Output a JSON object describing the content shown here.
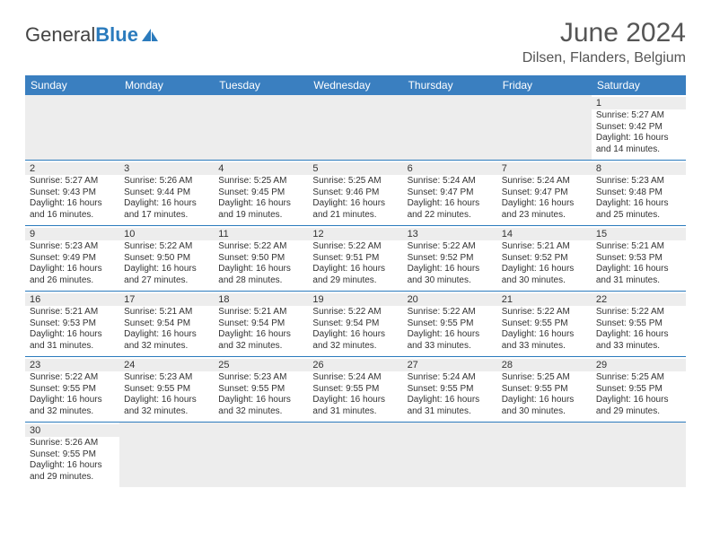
{
  "brand": {
    "part1": "General",
    "part2": "Blue"
  },
  "title": "June 2024",
  "location": "Dilsen, Flanders, Belgium",
  "colors": {
    "header_bg": "#3a7fc0",
    "header_text": "#ffffff",
    "accent": "#2b7bbd",
    "shade": "#ededed",
    "text": "#333333"
  },
  "weekdays": [
    "Sunday",
    "Monday",
    "Tuesday",
    "Wednesday",
    "Thursday",
    "Friday",
    "Saturday"
  ],
  "days": {
    "1": {
      "sunrise": "5:27 AM",
      "sunset": "9:42 PM",
      "daylight": "16 hours and 14 minutes."
    },
    "2": {
      "sunrise": "5:27 AM",
      "sunset": "9:43 PM",
      "daylight": "16 hours and 16 minutes."
    },
    "3": {
      "sunrise": "5:26 AM",
      "sunset": "9:44 PM",
      "daylight": "16 hours and 17 minutes."
    },
    "4": {
      "sunrise": "5:25 AM",
      "sunset": "9:45 PM",
      "daylight": "16 hours and 19 minutes."
    },
    "5": {
      "sunrise": "5:25 AM",
      "sunset": "9:46 PM",
      "daylight": "16 hours and 21 minutes."
    },
    "6": {
      "sunrise": "5:24 AM",
      "sunset": "9:47 PM",
      "daylight": "16 hours and 22 minutes."
    },
    "7": {
      "sunrise": "5:24 AM",
      "sunset": "9:47 PM",
      "daylight": "16 hours and 23 minutes."
    },
    "8": {
      "sunrise": "5:23 AM",
      "sunset": "9:48 PM",
      "daylight": "16 hours and 25 minutes."
    },
    "9": {
      "sunrise": "5:23 AM",
      "sunset": "9:49 PM",
      "daylight": "16 hours and 26 minutes."
    },
    "10": {
      "sunrise": "5:22 AM",
      "sunset": "9:50 PM",
      "daylight": "16 hours and 27 minutes."
    },
    "11": {
      "sunrise": "5:22 AM",
      "sunset": "9:50 PM",
      "daylight": "16 hours and 28 minutes."
    },
    "12": {
      "sunrise": "5:22 AM",
      "sunset": "9:51 PM",
      "daylight": "16 hours and 29 minutes."
    },
    "13": {
      "sunrise": "5:22 AM",
      "sunset": "9:52 PM",
      "daylight": "16 hours and 30 minutes."
    },
    "14": {
      "sunrise": "5:21 AM",
      "sunset": "9:52 PM",
      "daylight": "16 hours and 30 minutes."
    },
    "15": {
      "sunrise": "5:21 AM",
      "sunset": "9:53 PM",
      "daylight": "16 hours and 31 minutes."
    },
    "16": {
      "sunrise": "5:21 AM",
      "sunset": "9:53 PM",
      "daylight": "16 hours and 31 minutes."
    },
    "17": {
      "sunrise": "5:21 AM",
      "sunset": "9:54 PM",
      "daylight": "16 hours and 32 minutes."
    },
    "18": {
      "sunrise": "5:21 AM",
      "sunset": "9:54 PM",
      "daylight": "16 hours and 32 minutes."
    },
    "19": {
      "sunrise": "5:22 AM",
      "sunset": "9:54 PM",
      "daylight": "16 hours and 32 minutes."
    },
    "20": {
      "sunrise": "5:22 AM",
      "sunset": "9:55 PM",
      "daylight": "16 hours and 33 minutes."
    },
    "21": {
      "sunrise": "5:22 AM",
      "sunset": "9:55 PM",
      "daylight": "16 hours and 33 minutes."
    },
    "22": {
      "sunrise": "5:22 AM",
      "sunset": "9:55 PM",
      "daylight": "16 hours and 33 minutes."
    },
    "23": {
      "sunrise": "5:22 AM",
      "sunset": "9:55 PM",
      "daylight": "16 hours and 32 minutes."
    },
    "24": {
      "sunrise": "5:23 AM",
      "sunset": "9:55 PM",
      "daylight": "16 hours and 32 minutes."
    },
    "25": {
      "sunrise": "5:23 AM",
      "sunset": "9:55 PM",
      "daylight": "16 hours and 32 minutes."
    },
    "26": {
      "sunrise": "5:24 AM",
      "sunset": "9:55 PM",
      "daylight": "16 hours and 31 minutes."
    },
    "27": {
      "sunrise": "5:24 AM",
      "sunset": "9:55 PM",
      "daylight": "16 hours and 31 minutes."
    },
    "28": {
      "sunrise": "5:25 AM",
      "sunset": "9:55 PM",
      "daylight": "16 hours and 30 minutes."
    },
    "29": {
      "sunrise": "5:25 AM",
      "sunset": "9:55 PM",
      "daylight": "16 hours and 29 minutes."
    },
    "30": {
      "sunrise": "5:26 AM",
      "sunset": "9:55 PM",
      "daylight": "16 hours and 29 minutes."
    }
  },
  "labels": {
    "sunrise": "Sunrise: ",
    "sunset": "Sunset: ",
    "daylight": "Daylight: "
  },
  "layout": {
    "first_weekday_index": 6,
    "num_days": 30,
    "cell_font_size": 10,
    "header_font_size": 12,
    "title_font_size": 30
  }
}
